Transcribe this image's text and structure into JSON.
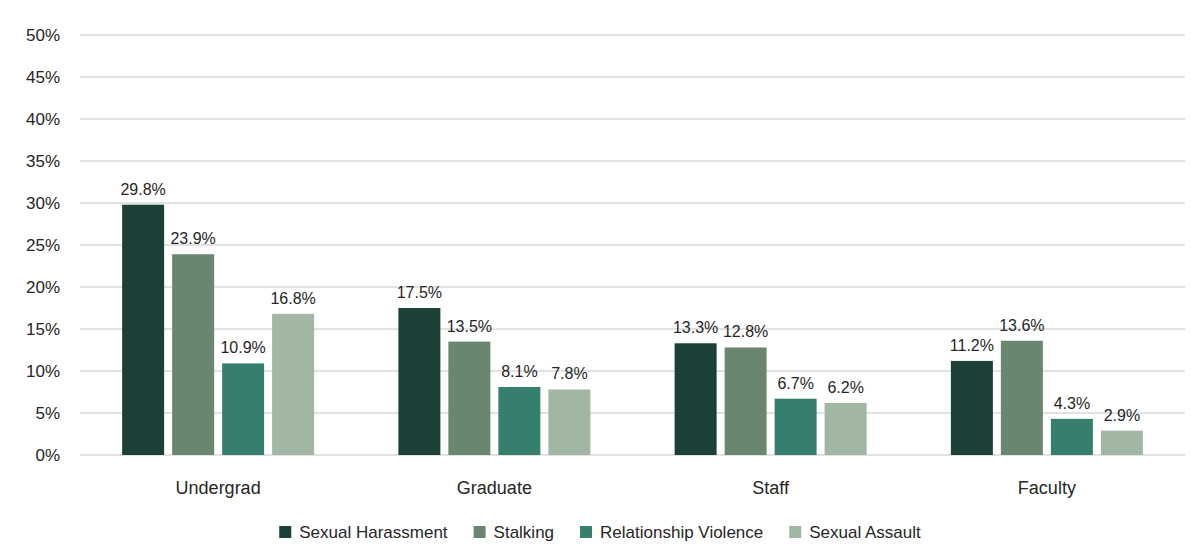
{
  "chart_data": {
    "type": "bar",
    "categories": [
      "Undergrad",
      "Graduate",
      "Staff",
      "Faculty"
    ],
    "series": [
      {
        "name": "Sexual Harassment",
        "color": "#1b4038",
        "values": [
          29.8,
          17.5,
          13.3,
          11.2
        ],
        "value_labels": [
          "29.8%",
          "17.5%",
          "13.3%",
          "11.2%"
        ]
      },
      {
        "name": "Stalking",
        "color": "#6a866e",
        "values": [
          23.9,
          13.5,
          12.8,
          13.6
        ],
        "value_labels": [
          "23.9%",
          "13.5%",
          "12.8%",
          "13.6%"
        ]
      },
      {
        "name": "Relationship Violence",
        "color": "#367f6f",
        "values": [
          10.9,
          8.1,
          6.7,
          4.3
        ],
        "value_labels": [
          "10.9%",
          "8.1%",
          "6.7%",
          "4.3%"
        ]
      },
      {
        "name": "Sexual Assault",
        "color": "#a2b6a4",
        "values": [
          16.8,
          7.8,
          6.2,
          2.9
        ],
        "value_labels": [
          "16.8%",
          "7.8%",
          "6.2%",
          "2.9%"
        ]
      }
    ],
    "ylim": [
      0,
      50
    ],
    "yticks": [
      {
        "value": 0,
        "label": "0%"
      },
      {
        "value": 5,
        "label": "5%"
      },
      {
        "value": 10,
        "label": "10%"
      },
      {
        "value": 15,
        "label": "15%"
      },
      {
        "value": 20,
        "label": "20%"
      },
      {
        "value": 25,
        "label": "25%"
      },
      {
        "value": 30,
        "label": "30%"
      },
      {
        "value": 35,
        "label": "35%"
      },
      {
        "value": 40,
        "label": "40%"
      },
      {
        "value": 45,
        "label": "45%"
      },
      {
        "value": 50,
        "label": "50%"
      }
    ],
    "grid": true,
    "data_labels": true,
    "legend": "bottom"
  }
}
